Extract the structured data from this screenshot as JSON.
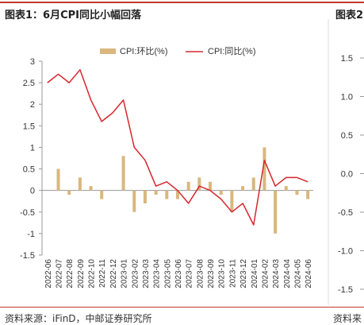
{
  "main_title": "图表1：6月CPI同比小幅回落",
  "side_title": "图表2",
  "source_text": "资料来源：iFinD，中邮证券研究所",
  "side_source": "资料来",
  "colors": {
    "bar": "#d9b77e",
    "line": "#d7262e",
    "rule": "#c0392b"
  },
  "chart_data": [
    {
      "type": "bar+line",
      "title": "",
      "xlabel": "",
      "ylabel": "",
      "ylim": [
        -1.5,
        3
      ],
      "yticks": [
        "3",
        "2.5",
        "2",
        "1.5",
        "1",
        "0.5",
        "0",
        "-0.5",
        "-1",
        "-1.5"
      ],
      "legend_position": "top",
      "grid": false,
      "categories": [
        "2022-06",
        "2022-07",
        "2022-08",
        "2022-09",
        "2022-10",
        "2022-11",
        "2022-12",
        "2023-01",
        "2023-02",
        "2023-03",
        "2023-04",
        "2023-05",
        "2023-06",
        "2023-07",
        "2023-08",
        "2023-09",
        "2023-10",
        "2023-11",
        "2023-12",
        "2024-01",
        "2024-02",
        "2024-03",
        "2024-04",
        "2024-05",
        "2024-06"
      ],
      "series": [
        {
          "name": "CPI:环比(%)",
          "type": "bar",
          "values": [
            0.0,
            0.5,
            -0.1,
            0.3,
            0.1,
            -0.2,
            0.0,
            0.8,
            -0.5,
            -0.3,
            -0.1,
            -0.2,
            -0.2,
            0.2,
            0.3,
            0.2,
            -0.1,
            -0.5,
            0.1,
            0.3,
            1.0,
            -1.0,
            0.1,
            -0.1,
            -0.2
          ]
        },
        {
          "name": "CPI:同比(%)",
          "type": "line",
          "values": [
            2.5,
            2.7,
            2.5,
            2.8,
            2.1,
            1.6,
            1.8,
            2.1,
            1.0,
            0.7,
            0.1,
            0.2,
            0.0,
            -0.3,
            0.1,
            0.0,
            -0.2,
            -0.5,
            -0.3,
            -0.8,
            0.7,
            0.1,
            0.3,
            0.3,
            0.2
          ]
        }
      ]
    },
    {
      "type": "line",
      "title": "",
      "ylim": [
        -1.5,
        1.5
      ],
      "yticks": [
        "1.5",
        "1.0",
        "0.5",
        "0.0",
        "-0.5",
        "-1.0",
        "-1.5"
      ]
    }
  ]
}
